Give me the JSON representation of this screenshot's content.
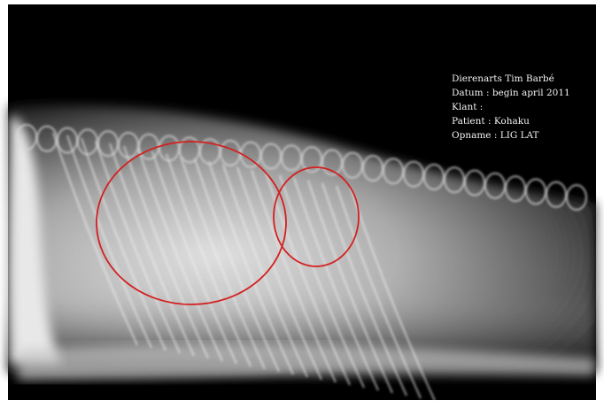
{
  "annotation": {
    "lines": [
      "Dierenarts Tim Barbé",
      "Datum : begin april 2011",
      "Klant :",
      "Patient : Kohaku",
      "Opname : LIG LAT"
    ]
  }
}
